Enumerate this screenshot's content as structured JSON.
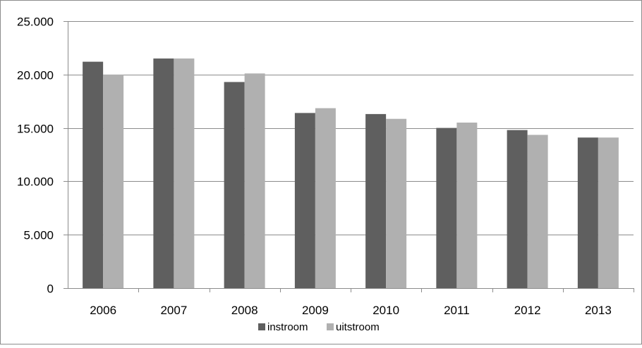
{
  "chart_data": {
    "type": "bar",
    "title": "",
    "xlabel": "",
    "ylabel": "",
    "categories": [
      "2006",
      "2007",
      "2008",
      "2009",
      "2010",
      "2011",
      "2012",
      "2013"
    ],
    "series": [
      {
        "name": "instroom",
        "color": "#5f5f5f",
        "values": [
          21200,
          21500,
          19300,
          16400,
          16300,
          15000,
          14800,
          14100
        ]
      },
      {
        "name": "uitstroom",
        "color": "#b0b0b0",
        "values": [
          20000,
          21500,
          20100,
          16850,
          15850,
          15500,
          14350,
          14100
        ]
      }
    ],
    "ylim": [
      0,
      25000
    ],
    "y_ticks": [
      0,
      5000,
      10000,
      15000,
      20000,
      25000
    ],
    "y_tick_labels": [
      "0",
      "5.000",
      "10.000",
      "15.000",
      "20.000",
      "25.000"
    ],
    "grid": true,
    "legend_position": "bottom"
  }
}
